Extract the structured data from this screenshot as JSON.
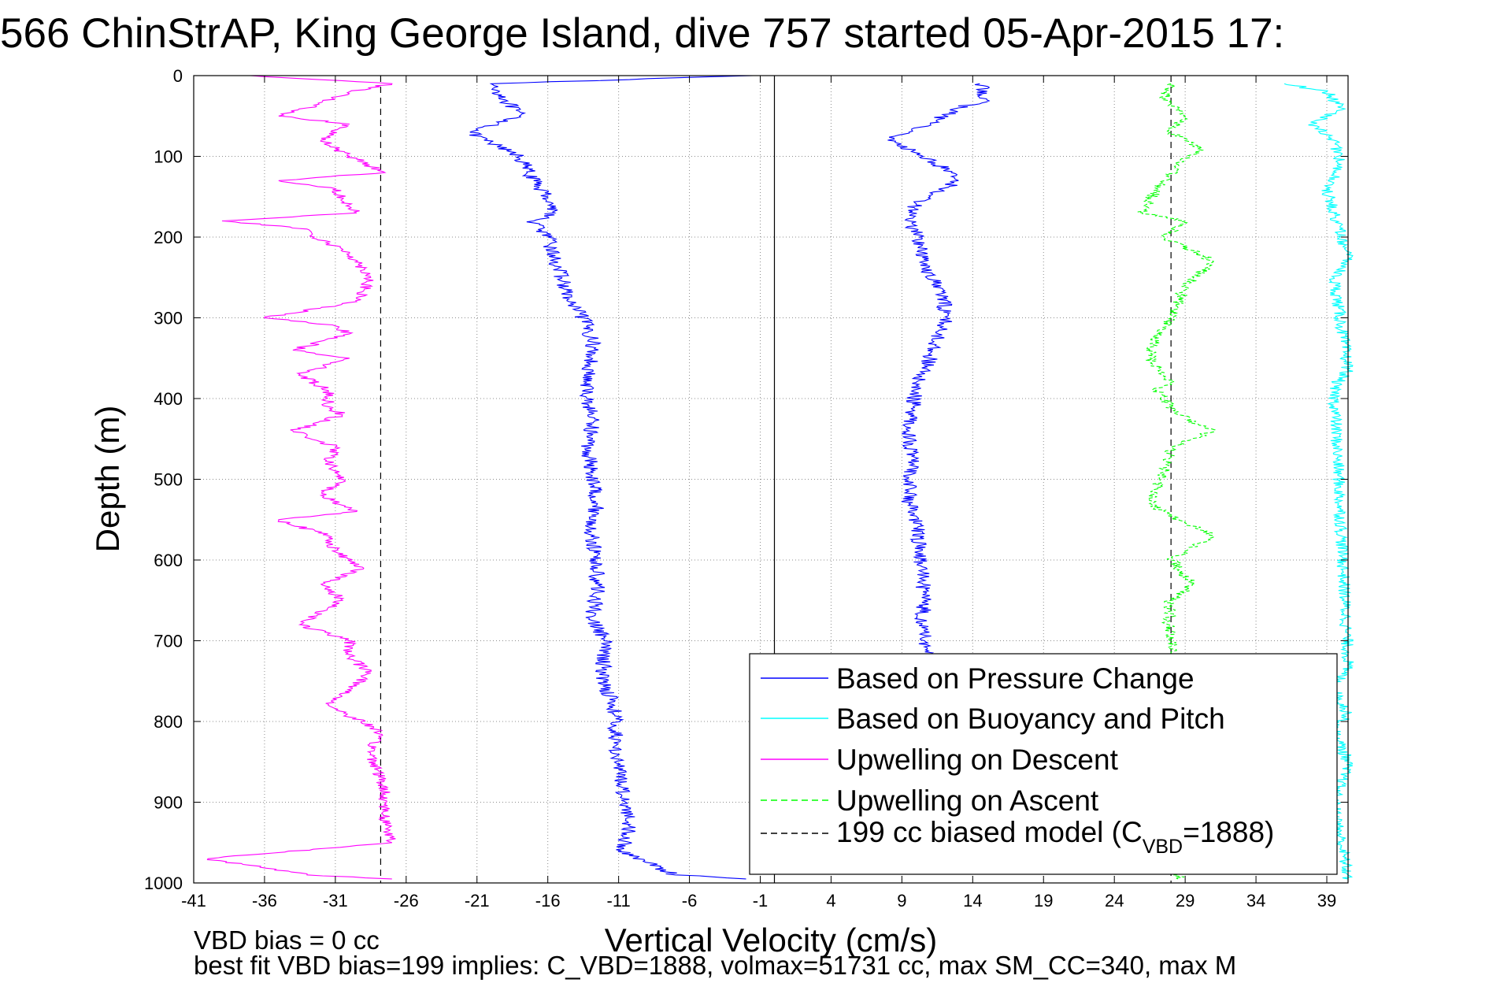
{
  "chart_data": {
    "type": "line",
    "title": "566 ChinStrAP, King George Island, dive 757 started 05-Apr-2015 17:",
    "xlabel": "Vertical Velocity (cm/s)",
    "ylabel": "Depth (m)",
    "xlim": [
      -41,
      40.5
    ],
    "ylim": [
      0,
      1000
    ],
    "y_reversed": true,
    "grid": "dotted",
    "x_ticks": [
      -41,
      -36,
      -31,
      -26,
      -21,
      -16,
      -11,
      -6,
      -1,
      4,
      9,
      14,
      19,
      24,
      29,
      34,
      39
    ],
    "y_ticks": [
      0,
      100,
      200,
      300,
      400,
      500,
      600,
      700,
      800,
      900,
      1000
    ],
    "legend_position": "bottom-right",
    "legend": [
      {
        "label": "Based on Pressure Change",
        "color": "#0000ff",
        "style": "solid"
      },
      {
        "label": "Based on Buoyancy and Pitch",
        "color": "#00ffff",
        "style": "solid"
      },
      {
        "label": "Upwelling on Descent",
        "color": "#ff00ff",
        "style": "solid"
      },
      {
        "label": "Upwelling on Ascent",
        "color": "#00ff00",
        "style": "dashed"
      },
      {
        "label_prefix": "199 cc biased model (C",
        "label_sub": "VBD",
        "label_suffix": "=1888)",
        "color": "#000000",
        "style": "dashed"
      }
    ],
    "reference_lines": [
      {
        "x": -27.8,
        "style": "dashed",
        "color": "#000000"
      },
      {
        "x": 28.0,
        "style": "dashed",
        "color": "#000000"
      },
      {
        "x": 0,
        "style": "solid",
        "color": "#000000"
      }
    ],
    "series": [
      {
        "name": "Based on Pressure Change",
        "color": "#0000ff",
        "style": "solid",
        "x": [
          -1.5,
          -20,
          -19,
          -18,
          -19.5,
          -21.5,
          -20.5,
          -18,
          -17,
          -16,
          -15.5,
          -17,
          -16,
          -15.5,
          -15,
          -14.5,
          -13.5,
          -12.8,
          -13,
          -13.3,
          -13.2,
          -12.8,
          -13.2,
          -12.8,
          -12.5,
          -13,
          -12.6,
          -12.5,
          -12.9,
          -12,
          -12.1,
          -11.3,
          -11.2,
          -11,
          -10.5,
          -10.2,
          -10.8,
          -7,
          -2
        ],
        "y": [
          0,
          10,
          30,
          50,
          60,
          70,
          80,
          100,
          130,
          150,
          170,
          180,
          200,
          230,
          250,
          280,
          300,
          330,
          360,
          380,
          400,
          430,
          460,
          500,
          530,
          560,
          600,
          640,
          670,
          700,
          750,
          780,
          830,
          860,
          900,
          930,
          960,
          990,
          995
        ]
      },
      {
        "name": "Based on Pressure Change",
        "color": "#0000ff",
        "style": "solid",
        "x": [
          14.5,
          15,
          13,
          11,
          9.5,
          8,
          10.5,
          12.5,
          13,
          11,
          10,
          9.5,
          10.2,
          10.5,
          11.8,
          12.2,
          11.6,
          11,
          10,
          9.8,
          9.5,
          9.7,
          9.5,
          10.1,
          10.3,
          10.5,
          10.6,
          10.4,
          10.6,
          10.8,
          11
        ],
        "y": [
          10,
          30,
          40,
          60,
          70,
          80,
          100,
          120,
          130,
          150,
          160,
          180,
          200,
          230,
          270,
          300,
          320,
          350,
          380,
          410,
          440,
          480,
          530,
          560,
          600,
          630,
          650,
          680,
          700,
          710,
          720
        ]
      },
      {
        "name": "Upwelling on Descent",
        "color": "#ff00ff",
        "style": "solid",
        "x": [
          -37,
          -27,
          -30,
          -33,
          -35,
          -30,
          -32,
          -30,
          -27.5,
          -35,
          -31,
          -30,
          -29.5,
          -39,
          -33,
          -32.5,
          -30,
          -28.5,
          -29.5,
          -36,
          -31,
          -30,
          -34,
          -30,
          -33.5,
          -31.5,
          -31.5,
          -30.5,
          -34,
          -31,
          -31.5,
          -30.5,
          -32,
          -29.5,
          -35,
          -31.5,
          -31,
          -29,
          -32,
          -30.5,
          -33.5,
          -30,
          -30,
          -28.5,
          -31.5,
          -28,
          -28.5,
          -28,
          -27.5,
          -27.5,
          -27,
          -40,
          -33,
          -27
        ],
        "y": [
          0,
          10,
          20,
          40,
          50,
          60,
          80,
          100,
          120,
          130,
          140,
          160,
          170,
          180,
          190,
          200,
          220,
          250,
          280,
          300,
          310,
          320,
          340,
          350,
          370,
          390,
          410,
          420,
          440,
          460,
          480,
          500,
          520,
          540,
          550,
          570,
          590,
          610,
          630,
          650,
          680,
          700,
          720,
          740,
          780,
          810,
          840,
          860,
          890,
          920,
          950,
          970,
          990,
          995
        ]
      },
      {
        "name": "Upwelling on Ascent",
        "color": "#00ff00",
        "style": "dashed",
        "x": [
          28,
          27.5,
          29,
          28,
          30,
          28.5,
          27,
          26,
          29,
          27.5,
          31,
          29,
          28,
          27,
          26.5,
          28,
          27,
          28,
          28.5,
          31,
          28,
          27.5,
          26.5,
          28.5,
          31,
          28,
          29.5,
          28,
          27.8,
          28,
          28.5
        ],
        "y": [
          10,
          30,
          50,
          70,
          90,
          110,
          140,
          170,
          180,
          200,
          230,
          260,
          300,
          320,
          350,
          380,
          390,
          410,
          420,
          440,
          460,
          490,
          530,
          550,
          570,
          600,
          630,
          650,
          680,
          700,
          995
        ]
      },
      {
        "name": "Based on Buoyancy and Pitch",
        "color": "#00ffff",
        "style": "solid",
        "x": [
          36,
          39,
          40,
          38,
          39.5,
          40,
          39,
          40.5,
          39.5,
          40.5,
          39.5,
          40.5,
          39.5,
          40.5,
          39.5,
          40.5,
          39.5,
          40.5
        ],
        "y": [
          10,
          20,
          40,
          60,
          80,
          110,
          140,
          230,
          250,
          365,
          385,
          730,
          760,
          790,
          810,
          850,
          900,
          995
        ]
      }
    ]
  },
  "footer": {
    "line1": "VBD bias = 0 cc",
    "line2": "best fit VBD bias=199 implies: C_VBD=1888, volmax=51731 cc, max SM_CC=340, max M"
  }
}
